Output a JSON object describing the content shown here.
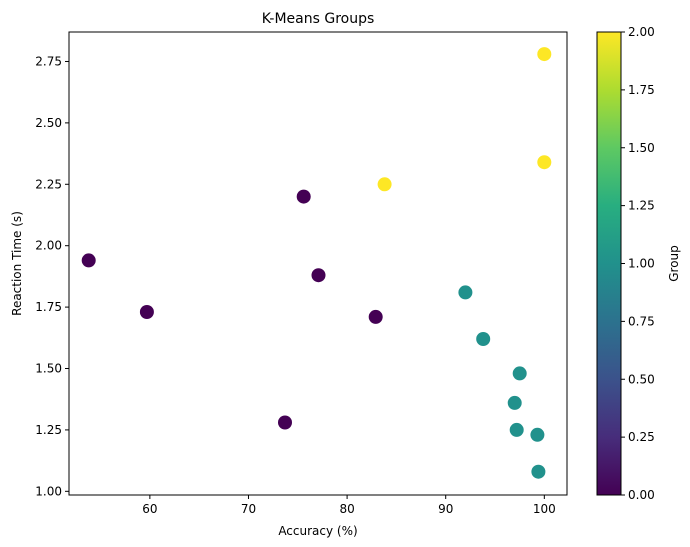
{
  "chart_data": {
    "type": "scatter",
    "title": "K-Means Groups",
    "xlabel": "Accuracy (%)",
    "ylabel": "Reaction Time (s)",
    "xlim": [
      51.8,
      102.3
    ],
    "ylim": [
      0.985,
      2.87
    ],
    "xticks": [
      60,
      70,
      80,
      90,
      100
    ],
    "yticks": [
      1.0,
      1.25,
      1.5,
      1.75,
      2.0,
      2.25,
      2.5,
      2.75
    ],
    "grid": false,
    "colorbar": {
      "label": "Group",
      "range": [
        0,
        2
      ],
      "colormap": "viridis",
      "ticks": [
        0.0,
        0.25,
        0.5,
        0.75,
        1.0,
        1.25,
        1.5,
        1.75,
        2.0
      ]
    },
    "points": [
      {
        "x": 53.8,
        "y": 1.94,
        "group": 0
      },
      {
        "x": 59.7,
        "y": 1.73,
        "group": 0
      },
      {
        "x": 73.7,
        "y": 1.28,
        "group": 0
      },
      {
        "x": 75.6,
        "y": 2.2,
        "group": 0
      },
      {
        "x": 77.1,
        "y": 1.88,
        "group": 0
      },
      {
        "x": 82.9,
        "y": 1.71,
        "group": 0
      },
      {
        "x": 83.8,
        "y": 2.25,
        "group": 2
      },
      {
        "x": 100.0,
        "y": 2.78,
        "group": 2
      },
      {
        "x": 100.0,
        "y": 2.34,
        "group": 2
      },
      {
        "x": 92.0,
        "y": 1.81,
        "group": 1
      },
      {
        "x": 93.8,
        "y": 1.62,
        "group": 1
      },
      {
        "x": 97.5,
        "y": 1.48,
        "group": 1
      },
      {
        "x": 97.0,
        "y": 1.36,
        "group": 1
      },
      {
        "x": 97.2,
        "y": 1.25,
        "group": 1
      },
      {
        "x": 99.3,
        "y": 1.23,
        "group": 1
      },
      {
        "x": 99.4,
        "y": 1.08,
        "group": 1
      }
    ]
  }
}
